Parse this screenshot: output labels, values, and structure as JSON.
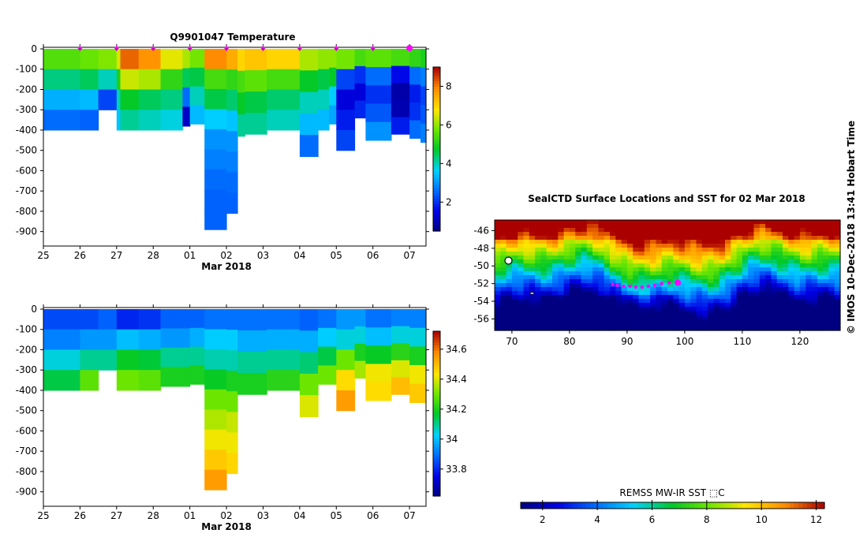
{
  "chart_data": [
    {
      "type": "heatmap",
      "title": "Q9901047  Temperature",
      "xlabel": "Mar 2018",
      "x_tick_labels": [
        "25",
        "26",
        "27",
        "28",
        "01",
        "02",
        "03",
        "04",
        "05",
        "06",
        "07"
      ],
      "y_tick_labels": [
        "0",
        "-100",
        "-200",
        "-300",
        "-400",
        "-500",
        "-600",
        "-700",
        "-800",
        "-900"
      ],
      "ylim": [
        -960,
        0
      ],
      "colorbar_ticks": [
        "2",
        "4",
        "6",
        "8"
      ],
      "colorbar_range": [
        0.5,
        9.0
      ],
      "profile_marks": [
        "26",
        "27",
        "28",
        "01",
        "02",
        "03",
        "04",
        "05",
        "06",
        "07"
      ],
      "columns": [
        {
          "x0": 25.0,
          "x1": 26.0,
          "bottom": -400,
          "values": [
            5.5,
            4.3,
            3.3,
            2.6
          ]
        },
        {
          "x0": 26.0,
          "x1": 26.5,
          "bottom": -400,
          "values": [
            5.7,
            4.5,
            3.4,
            2.5
          ]
        },
        {
          "x0": 26.5,
          "x1": 27.0,
          "bottom": -300,
          "values": [
            5.9,
            4.0,
            2.2
          ]
        },
        {
          "x0": 27.0,
          "x1": 27.1,
          "bottom": -400,
          "values": [
            6.5,
            5.0,
            4.0,
            3.5
          ]
        },
        {
          "x0": 27.1,
          "x1": 27.6,
          "bottom": -400,
          "values": [
            8.2,
            6.4,
            4.8,
            4.2
          ]
        },
        {
          "x0": 27.6,
          "x1": 28.2,
          "bottom": -400,
          "values": [
            7.8,
            6.2,
            4.5,
            4.0
          ]
        },
        {
          "x0": 28.2,
          "x1": 28.8,
          "bottom": -400,
          "values": [
            6.6,
            5.2,
            4.3,
            3.8
          ]
        },
        {
          "x0": 28.8,
          "x1": 29.0,
          "bottom": -380,
          "values": [
            6.2,
            4.5,
            2.6,
            1.2
          ]
        },
        {
          "x0": 29.0,
          "x1": 29.4,
          "bottom": -370,
          "values": [
            5.8,
            4.6,
            4.0,
            3.4
          ]
        },
        {
          "x0": 29.4,
          "x1": 30.0,
          "bottom": -890,
          "values": [
            7.9,
            5.4,
            4.6,
            3.6,
            3.0,
            2.8,
            2.6,
            2.5,
            2.5
          ]
        },
        {
          "x0": 30.0,
          "x1": 30.3,
          "bottom": -810,
          "values": [
            7.5,
            5.2,
            4.4,
            3.5,
            3.0,
            2.8,
            2.6,
            2.5
          ]
        },
        {
          "x0": 30.3,
          "x1": 30.5,
          "bottom": -430,
          "values": [
            7.0,
            5.4,
            4.8,
            4.2
          ]
        },
        {
          "x0": 30.5,
          "x1": 31.1,
          "bottom": -420,
          "values": [
            7.2,
            5.6,
            4.6,
            4.2
          ]
        },
        {
          "x0": 31.1,
          "x1": 32.0,
          "bottom": -400,
          "values": [
            7.0,
            5.4,
            4.4,
            4.0
          ]
        },
        {
          "x0": 32.0,
          "x1": 32.5,
          "bottom": -530,
          "values": [
            6.2,
            4.8,
            4.0,
            3.4,
            2.6
          ]
        },
        {
          "x0": 32.5,
          "x1": 32.8,
          "bottom": -400,
          "values": [
            6.0,
            4.6,
            4.0,
            3.4
          ]
        },
        {
          "x0": 32.8,
          "x1": 33.0,
          "bottom": -370,
          "values": [
            6.0,
            4.8,
            3.6,
            3.2
          ]
        },
        {
          "x0": 33.0,
          "x1": 33.5,
          "bottom": -500,
          "values": [
            5.8,
            2.2,
            1.4,
            1.8,
            2.2
          ]
        },
        {
          "x0": 33.5,
          "x1": 33.8,
          "bottom": -340,
          "values": [
            5.4,
            2.0,
            1.4,
            1.9
          ]
        },
        {
          "x0": 33.8,
          "x1": 34.5,
          "bottom": -450,
          "values": [
            5.6,
            2.6,
            2.0,
            2.4,
            3.0
          ]
        },
        {
          "x0": 34.5,
          "x1": 35.0,
          "bottom": -420,
          "values": [
            5.4,
            1.6,
            0.9,
            1.0,
            1.8
          ]
        },
        {
          "x0": 35.0,
          "x1": 35.3,
          "bottom": -440,
          "values": [
            5.2,
            2.6,
            1.8,
            2.0,
            2.6
          ]
        },
        {
          "x0": 35.3,
          "x1": 35.45,
          "bottom": -460,
          "values": [
            5.0,
            2.8,
            2.2,
            2.4,
            2.8
          ]
        }
      ]
    },
    {
      "type": "heatmap",
      "title": "",
      "xlabel": "Mar 2018",
      "x_tick_labels": [
        "25",
        "26",
        "27",
        "28",
        "01",
        "02",
        "03",
        "04",
        "05",
        "06",
        "07"
      ],
      "y_tick_labels": [
        "0",
        "-100",
        "-200",
        "-300",
        "-400",
        "-500",
        "-600",
        "-700",
        "-800",
        "-900"
      ],
      "ylim": [
        -960,
        0
      ],
      "colorbar_ticks": [
        "33.8",
        "34",
        "34.2",
        "34.4",
        "34.6"
      ],
      "colorbar_range": [
        33.62,
        34.72
      ],
      "columns": [
        {
          "x0": 25.0,
          "x1": 26.0,
          "bottom": -400,
          "values": [
            33.85,
            33.92,
            34.05,
            34.15
          ]
        },
        {
          "x0": 26.0,
          "x1": 26.5,
          "bottom": -400,
          "values": [
            33.85,
            33.95,
            34.1,
            34.28
          ]
        },
        {
          "x0": 26.5,
          "x1": 27.0,
          "bottom": -300,
          "values": [
            33.88,
            33.95,
            34.1
          ]
        },
        {
          "x0": 27.0,
          "x1": 27.6,
          "bottom": -400,
          "values": [
            33.8,
            34.0,
            34.18,
            34.3
          ]
        },
        {
          "x0": 27.6,
          "x1": 28.2,
          "bottom": -400,
          "values": [
            33.82,
            33.98,
            34.16,
            34.28
          ]
        },
        {
          "x0": 28.2,
          "x1": 29.0,
          "bottom": -380,
          "values": [
            33.88,
            33.95,
            34.1,
            34.2
          ]
        },
        {
          "x0": 29.0,
          "x1": 29.4,
          "bottom": -370,
          "values": [
            33.88,
            33.98,
            34.1,
            34.2
          ]
        },
        {
          "x0": 29.4,
          "x1": 30.0,
          "bottom": -890,
          "values": [
            33.9,
            34.02,
            34.08,
            34.18,
            34.3,
            34.36,
            34.42,
            34.48,
            34.55
          ]
        },
        {
          "x0": 30.0,
          "x1": 30.3,
          "bottom": -810,
          "values": [
            33.9,
            34.02,
            34.08,
            34.2,
            34.3,
            34.38,
            34.42,
            34.46
          ]
        },
        {
          "x0": 30.3,
          "x1": 31.1,
          "bottom": -420,
          "values": [
            33.9,
            33.98,
            34.1,
            34.2
          ]
        },
        {
          "x0": 31.1,
          "x1": 32.0,
          "bottom": -400,
          "values": [
            33.9,
            33.98,
            34.1,
            34.22
          ]
        },
        {
          "x0": 32.0,
          "x1": 32.5,
          "bottom": -530,
          "values": [
            33.88,
            33.98,
            34.12,
            34.3,
            34.4
          ]
        },
        {
          "x0": 32.5,
          "x1": 33.0,
          "bottom": -370,
          "values": [
            33.9,
            34.02,
            34.15,
            34.3
          ]
        },
        {
          "x0": 33.0,
          "x1": 33.5,
          "bottom": -500,
          "values": [
            33.95,
            34.05,
            34.3,
            34.45,
            34.55
          ]
        },
        {
          "x0": 33.5,
          "x1": 33.8,
          "bottom": -340,
          "values": [
            33.95,
            34.05,
            34.2,
            34.35
          ]
        },
        {
          "x0": 33.8,
          "x1": 34.5,
          "bottom": -450,
          "values": [
            33.9,
            34.0,
            34.18,
            34.42,
            34.45
          ]
        },
        {
          "x0": 34.5,
          "x1": 35.0,
          "bottom": -420,
          "values": [
            33.92,
            34.05,
            34.22,
            34.4,
            34.5
          ]
        },
        {
          "x0": 35.0,
          "x1": 35.45,
          "bottom": -460,
          "values": [
            33.92,
            34.05,
            34.2,
            34.42,
            34.48
          ]
        }
      ]
    },
    {
      "type": "heatmap",
      "title": "SealCTD Surface Locations and SST for 02 Mar 2018",
      "x_tick_labels": [
        "70",
        "80",
        "90",
        "100",
        "110",
        "120"
      ],
      "y_tick_labels": [
        "-46",
        "-48",
        "-50",
        "-52",
        "-54",
        "-56"
      ],
      "xlim": [
        67,
        127
      ],
      "ylim": [
        -57.3,
        -44.8
      ],
      "colorbar_label": "REMSS MW-IR SST ⬚C",
      "colorbar_ticks": [
        "2",
        "4",
        "6",
        "8",
        "10",
        "12"
      ],
      "colorbar_range": [
        1.2,
        12.3
      ],
      "seal_positions": [
        {
          "lon": 87.5,
          "lat": -52.1
        },
        {
          "lon": 88.3,
          "lat": -52.2
        },
        {
          "lon": 89.4,
          "lat": -52.3
        },
        {
          "lon": 90.5,
          "lat": -52.3
        },
        {
          "lon": 91.5,
          "lat": -52.4
        },
        {
          "lon": 92.6,
          "lat": -52.4
        },
        {
          "lon": 93.7,
          "lat": -52.3
        },
        {
          "lon": 94.8,
          "lat": -52.2
        },
        {
          "lon": 96.0,
          "lat": -52.0
        },
        {
          "lon": 97.3,
          "lat": -51.9
        },
        {
          "lon": 98.8,
          "lat": -51.9,
          "latest": true
        }
      ]
    }
  ],
  "credit_text": "©  IMOS 10-Dec-2018 13:41 Hobart Time"
}
